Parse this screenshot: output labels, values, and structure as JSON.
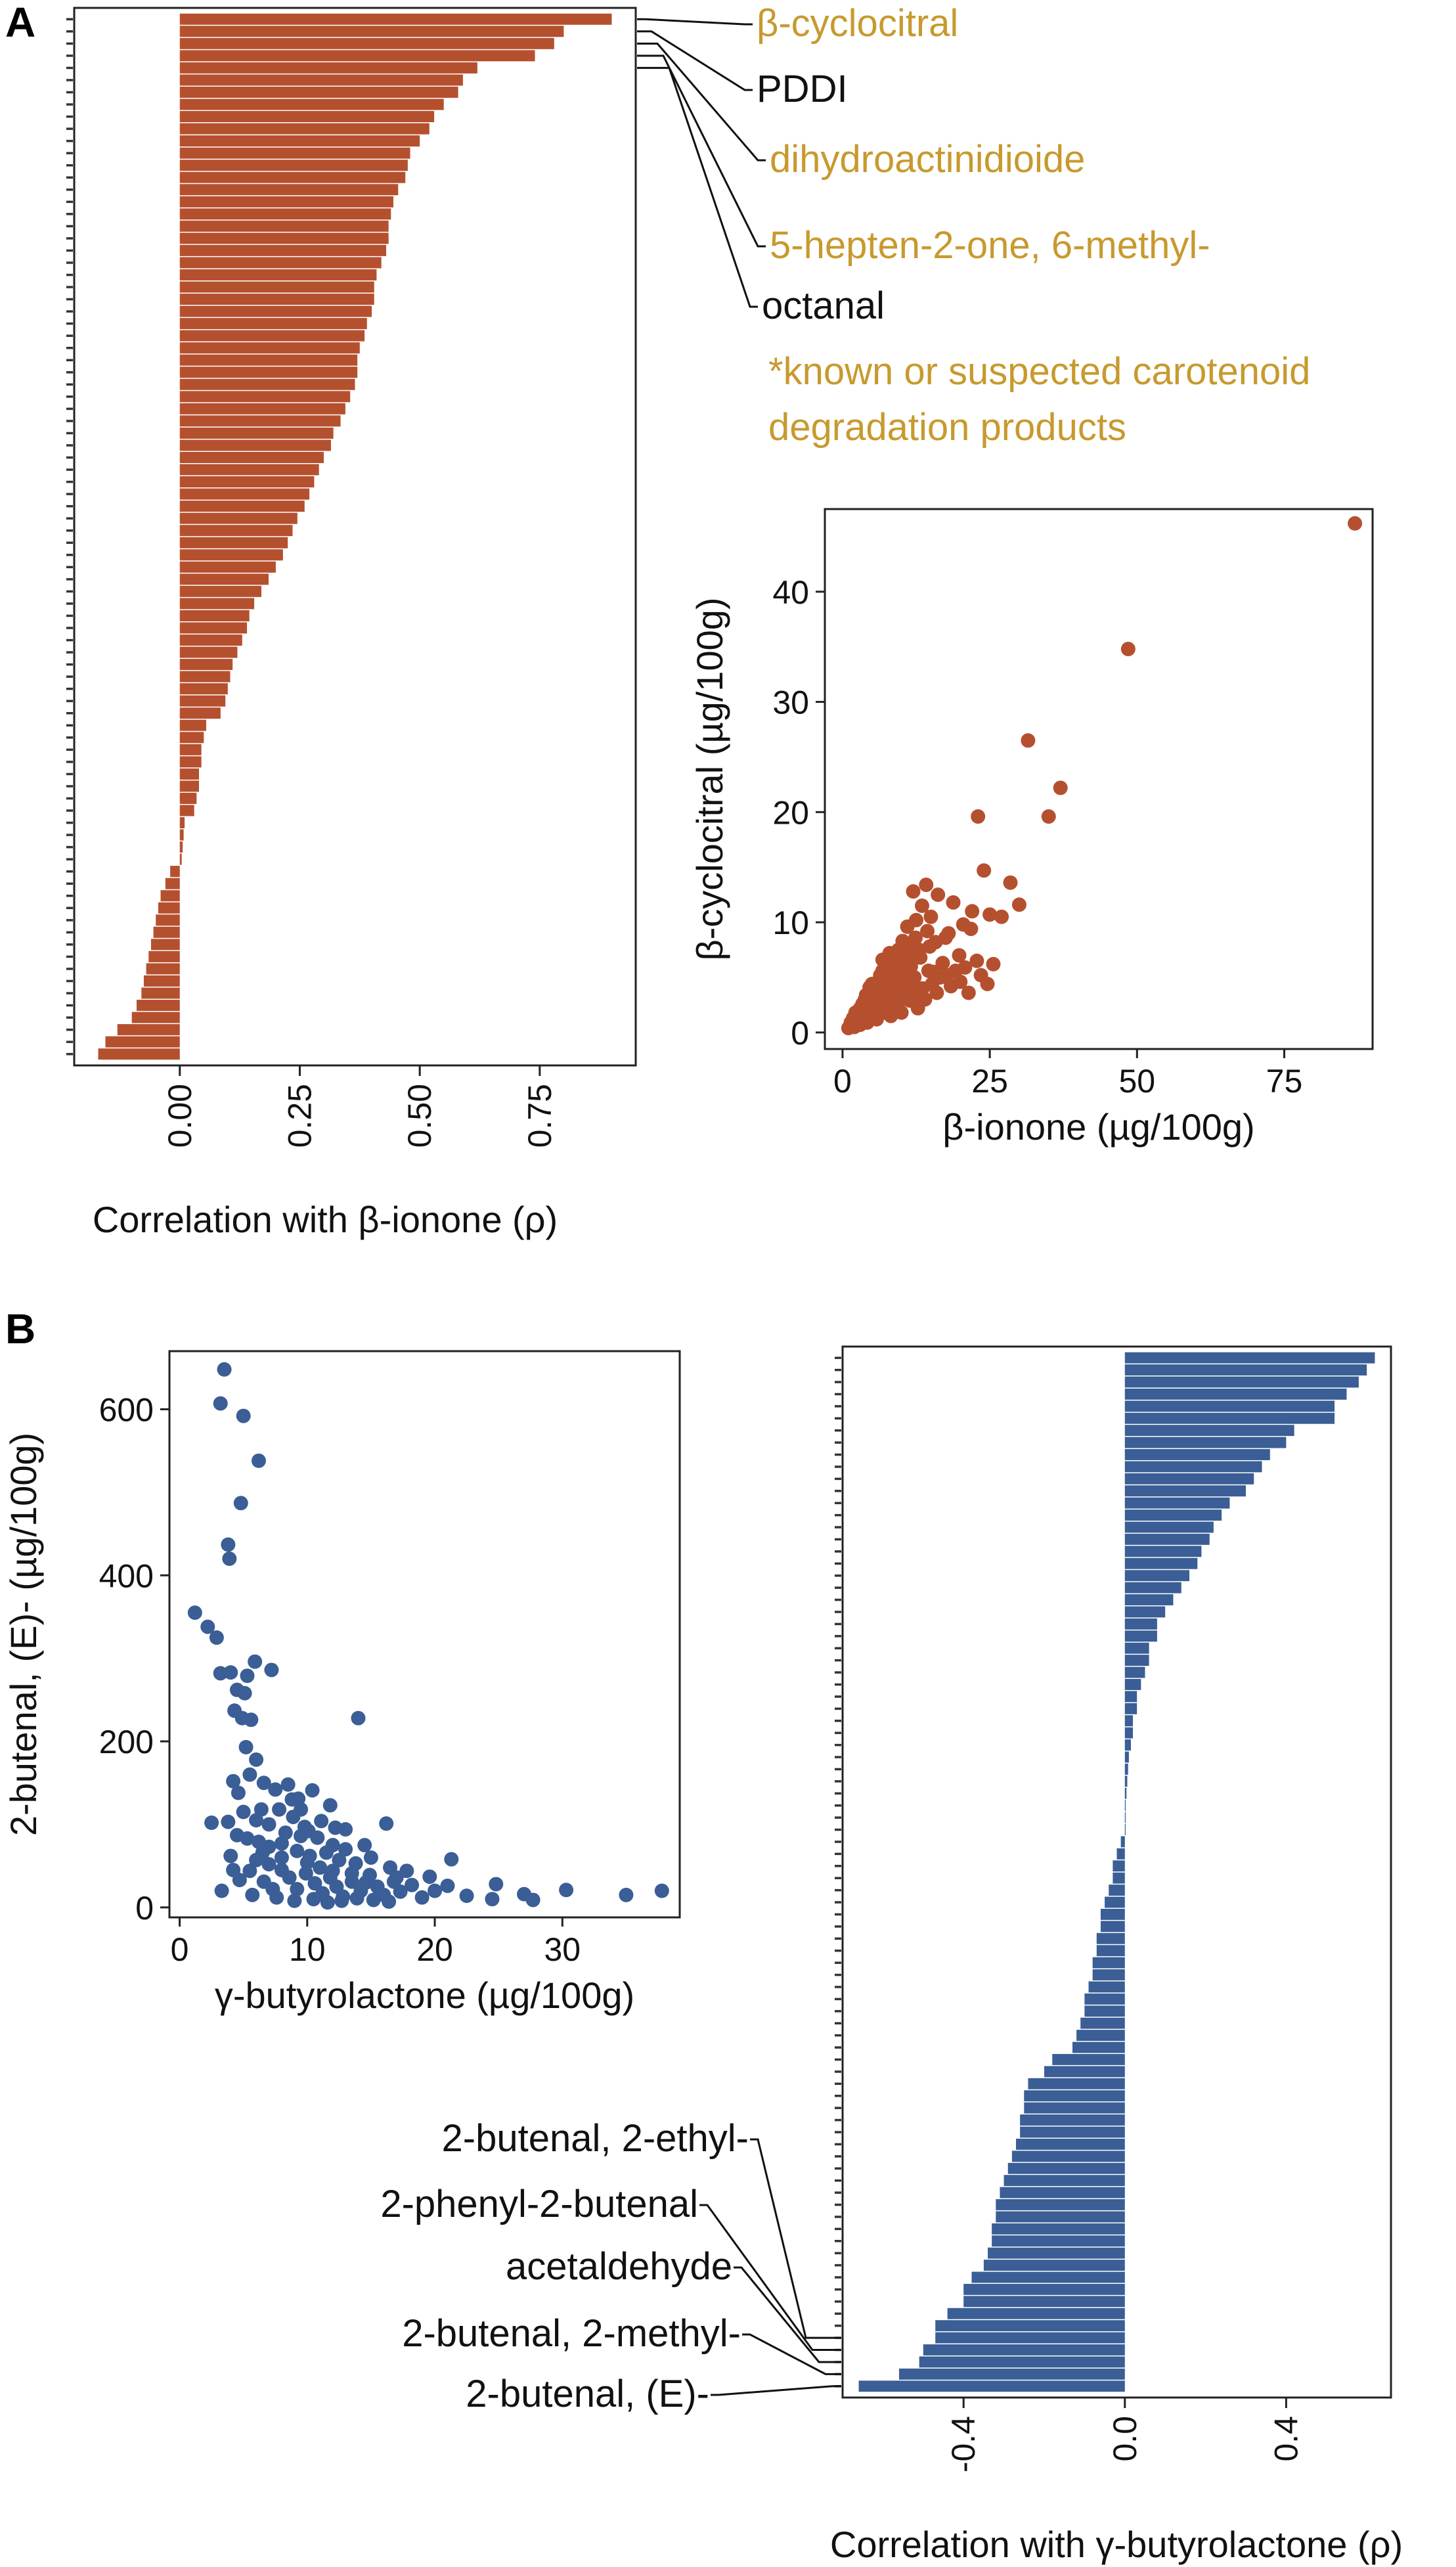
{
  "panel_labels": {
    "a": "A",
    "b": "B"
  },
  "colors": {
    "carotenoid": "#b5502f",
    "lactone": "#3a5e95",
    "note": "#c79a2e",
    "text": "#111111"
  },
  "panel_a": {
    "note_line1": "*known or suspected carotenoid",
    "note_line2": "degradation products"
  },
  "chart_data": [
    {
      "id": "a_bar",
      "type": "bar",
      "orientation": "horizontal",
      "xlabel": "Correlation with β-ionone (ρ)",
      "xticks": [
        0.0,
        0.25,
        0.5,
        0.75
      ],
      "xtick_labels": [
        "0.00",
        "0.25",
        "0.50",
        "0.75"
      ],
      "xlim": [
        -0.22,
        0.95
      ],
      "values": [
        0.9,
        0.8,
        0.78,
        0.74,
        0.62,
        0.59,
        0.58,
        0.55,
        0.53,
        0.52,
        0.5,
        0.48,
        0.475,
        0.47,
        0.455,
        0.445,
        0.44,
        0.435,
        0.435,
        0.43,
        0.42,
        0.41,
        0.405,
        0.405,
        0.4,
        0.39,
        0.385,
        0.375,
        0.37,
        0.37,
        0.365,
        0.355,
        0.345,
        0.335,
        0.32,
        0.315,
        0.3,
        0.29,
        0.28,
        0.27,
        0.26,
        0.245,
        0.235,
        0.225,
        0.215,
        0.2,
        0.185,
        0.17,
        0.155,
        0.145,
        0.14,
        0.13,
        0.12,
        0.11,
        0.105,
        0.1,
        0.095,
        0.085,
        0.055,
        0.05,
        0.045,
        0.045,
        0.04,
        0.04,
        0.035,
        0.03,
        0.01,
        0.008,
        0.006,
        0.004,
        -0.02,
        -0.03,
        -0.04,
        -0.045,
        -0.05,
        -0.055,
        -0.06,
        -0.065,
        -0.07,
        -0.075,
        -0.08,
        -0.09,
        -0.1,
        -0.13,
        -0.155,
        -0.17
      ],
      "labeled_bars": [
        {
          "name": "β-cyclocitral",
          "rank": 0,
          "color": "#c79a2e"
        },
        {
          "name": "PDDI",
          "rank": 1,
          "color": "#111111"
        },
        {
          "name": "dihydroactinidioide",
          "rank": 2,
          "color": "#c79a2e"
        },
        {
          "name": "5-hepten-2-one, 6-methyl-",
          "rank": 3,
          "color": "#c79a2e"
        },
        {
          "name": "octanal",
          "rank": 4,
          "color": "#111111"
        }
      ]
    },
    {
      "id": "a_scatter",
      "type": "scatter",
      "xlabel": "β-ionone (µg/100g)",
      "ylabel": "β-cyclocitral (µg/100g)",
      "xlim": [
        -3,
        90
      ],
      "ylim": [
        -1.5,
        47.5
      ],
      "xticks": [
        0,
        25,
        50,
        75
      ],
      "yticks": [
        0,
        10,
        20,
        30,
        40
      ],
      "points": [
        [
          87,
          46.2
        ],
        [
          48.5,
          34.8
        ],
        [
          31.5,
          26.5
        ],
        [
          37,
          22.2
        ],
        [
          35,
          19.6
        ],
        [
          23,
          19.6
        ],
        [
          24,
          14.7
        ],
        [
          28.5,
          13.6
        ],
        [
          30,
          11.6
        ],
        [
          27,
          10.5
        ],
        [
          25,
          10.7
        ],
        [
          22,
          11.0
        ],
        [
          18.8,
          11.8
        ],
        [
          20.5,
          9.8
        ],
        [
          21.8,
          9.4
        ],
        [
          16.2,
          12.5
        ],
        [
          14.2,
          13.4
        ],
        [
          12.0,
          12.8
        ],
        [
          13.5,
          11.5
        ],
        [
          11.0,
          9.6
        ],
        [
          12.5,
          10.2
        ],
        [
          15.0,
          10.5
        ],
        [
          17.5,
          8.6
        ],
        [
          19.8,
          7.0
        ],
        [
          22.8,
          6.5
        ],
        [
          25.6,
          6.2
        ],
        [
          23.5,
          5.2
        ],
        [
          20.0,
          4.6
        ],
        [
          17.0,
          6.3
        ],
        [
          15.5,
          5.5
        ],
        [
          14.8,
          7.8
        ],
        [
          13.0,
          7.5
        ],
        [
          11.8,
          8.0
        ],
        [
          10.5,
          6.6
        ],
        [
          9.8,
          5.6
        ],
        [
          9.0,
          5.0
        ],
        [
          8.5,
          6.1
        ],
        [
          8.0,
          5.5
        ],
        [
          7.5,
          4.8
        ],
        [
          7.0,
          4.2
        ],
        [
          6.8,
          5.6
        ],
        [
          6.2,
          3.6
        ],
        [
          5.6,
          3.2
        ],
        [
          5.0,
          2.8
        ],
        [
          4.5,
          2.4
        ],
        [
          4.0,
          2.1
        ],
        [
          3.6,
          1.8
        ],
        [
          3.2,
          1.6
        ],
        [
          2.8,
          1.4
        ],
        [
          2.4,
          1.1
        ],
        [
          2.0,
          0.8
        ],
        [
          1.6,
          0.6
        ],
        [
          1.2,
          0.5
        ],
        [
          1.0,
          0.4
        ],
        [
          3.8,
          3.0
        ],
        [
          4.8,
          3.6
        ],
        [
          6.0,
          4.6
        ],
        [
          7.2,
          6.3
        ],
        [
          8.8,
          6.6
        ],
        [
          9.5,
          7.5
        ],
        [
          10.2,
          8.3
        ],
        [
          5.4,
          1.8
        ],
        [
          6.6,
          2.6
        ],
        [
          7.8,
          3.1
        ],
        [
          9.2,
          3.8
        ],
        [
          10.8,
          4.4
        ],
        [
          12.2,
          5.0
        ],
        [
          13.6,
          4.0
        ],
        [
          11.4,
          2.9
        ],
        [
          8.2,
          2.4
        ],
        [
          5.8,
          1.2
        ],
        [
          4.2,
          0.9
        ],
        [
          3.0,
          0.7
        ],
        [
          2.2,
          1.8
        ],
        [
          14.0,
          3.0
        ],
        [
          16.0,
          3.6
        ],
        [
          18.4,
          4.2
        ],
        [
          10.0,
          1.8
        ],
        [
          12.8,
          2.2
        ],
        [
          6.4,
          5.2
        ],
        [
          7.6,
          5.9
        ],
        [
          4.6,
          4.1
        ],
        [
          3.4,
          2.6
        ],
        [
          8.6,
          4.2
        ],
        [
          9.6,
          3.0
        ],
        [
          11.6,
          6.0
        ],
        [
          13.2,
          6.8
        ],
        [
          12.4,
          8.6
        ],
        [
          15.8,
          8.2
        ],
        [
          18.0,
          9.0
        ],
        [
          5.2,
          2.2
        ],
        [
          6.0,
          3.0
        ],
        [
          4.4,
          1.6
        ],
        [
          7.0,
          2.0
        ],
        [
          8.2,
          1.5
        ],
        [
          9.4,
          2.2
        ],
        [
          2.6,
          0.9
        ],
        [
          3.6,
          1.2
        ],
        [
          1.8,
          1.3
        ],
        [
          5.0,
          4.4
        ],
        [
          8.0,
          7.2
        ],
        [
          10.6,
          5.4
        ],
        [
          12.0,
          4.0
        ],
        [
          14.6,
          5.6
        ],
        [
          16.6,
          5.0
        ],
        [
          19.2,
          5.6
        ],
        [
          6.8,
          6.6
        ],
        [
          7.4,
          3.6
        ],
        [
          9.0,
          4.6
        ],
        [
          11.0,
          3.6
        ],
        [
          13.0,
          3.4
        ],
        [
          15.2,
          4.4
        ],
        [
          4.0,
          3.4
        ],
        [
          5.6,
          2.6
        ],
        [
          3.0,
          2.2
        ],
        [
          2.0,
          0.5
        ],
        [
          1.4,
          0.9
        ],
        [
          4.8,
          1.4
        ],
        [
          6.4,
          1.7
        ],
        [
          17.8,
          5.2
        ],
        [
          20.8,
          5.9
        ],
        [
          21.4,
          3.6
        ],
        [
          24.6,
          4.4
        ],
        [
          9.8,
          6.3
        ],
        [
          10.4,
          7.0
        ],
        [
          11.2,
          7.2
        ],
        [
          12.6,
          7.1
        ],
        [
          14.4,
          9.2
        ],
        [
          8.4,
          5.1
        ],
        [
          7.2,
          4.7
        ],
        [
          6.6,
          4.0
        ],
        [
          5.8,
          3.8
        ]
      ]
    },
    {
      "id": "b_scatter",
      "type": "scatter",
      "xlabel": "γ-butyrolactone (µg/100g)",
      "ylabel": "2-butenal, (E)- (µg/100g)",
      "xlim": [
        -0.8,
        39.2
      ],
      "ylim": [
        -12,
        670
      ],
      "xticks": [
        0,
        10,
        20,
        30
      ],
      "yticks": [
        0,
        200,
        400,
        600
      ],
      "points": [
        [
          3.5,
          648
        ],
        [
          3.2,
          607
        ],
        [
          5.0,
          592
        ],
        [
          6.2,
          538
        ],
        [
          4.8,
          487
        ],
        [
          3.8,
          437
        ],
        [
          3.9,
          420
        ],
        [
          1.2,
          355
        ],
        [
          2.2,
          338
        ],
        [
          2.9,
          325
        ],
        [
          4.0,
          283
        ],
        [
          5.3,
          279
        ],
        [
          5.9,
          296
        ],
        [
          7.2,
          286
        ],
        [
          3.2,
          282
        ],
        [
          4.5,
          262
        ],
        [
          5.1,
          258
        ],
        [
          4.3,
          237
        ],
        [
          4.9,
          228
        ],
        [
          5.6,
          226
        ],
        [
          14.0,
          228
        ],
        [
          5.2,
          193
        ],
        [
          6.0,
          178
        ],
        [
          5.5,
          160
        ],
        [
          6.6,
          150
        ],
        [
          7.5,
          142
        ],
        [
          8.5,
          148
        ],
        [
          9.3,
          131
        ],
        [
          10.4,
          141
        ],
        [
          11.8,
          123
        ],
        [
          4.2,
          152
        ],
        [
          4.6,
          138
        ],
        [
          6.4,
          118
        ],
        [
          7.8,
          118
        ],
        [
          8.9,
          109
        ],
        [
          9.8,
          97
        ],
        [
          11.1,
          104
        ],
        [
          12.2,
          96
        ],
        [
          13.0,
          94
        ],
        [
          16.2,
          101
        ],
        [
          2.5,
          102
        ],
        [
          3.8,
          103
        ],
        [
          4.5,
          87
        ],
        [
          5.3,
          83
        ],
        [
          6.2,
          79
        ],
        [
          7.0,
          73
        ],
        [
          8.0,
          77
        ],
        [
          9.2,
          68
        ],
        [
          10.2,
          62
        ],
        [
          11.5,
          66
        ],
        [
          12.5,
          57
        ],
        [
          13.8,
          53
        ],
        [
          15.0,
          60
        ],
        [
          16.5,
          48
        ],
        [
          17.8,
          44
        ],
        [
          19.6,
          37
        ],
        [
          21.3,
          58
        ],
        [
          24.8,
          28
        ],
        [
          27.0,
          16
        ],
        [
          30.3,
          21
        ],
        [
          35.0,
          15
        ],
        [
          37.8,
          20
        ],
        [
          3.3,
          20
        ],
        [
          4.0,
          62
        ],
        [
          4.7,
          33
        ],
        [
          5.5,
          44
        ],
        [
          6.0,
          57
        ],
        [
          6.6,
          31
        ],
        [
          7.3,
          22
        ],
        [
          8.0,
          45
        ],
        [
          8.6,
          36
        ],
        [
          9.2,
          22
        ],
        [
          9.9,
          41
        ],
        [
          10.6,
          29
        ],
        [
          11.2,
          17
        ],
        [
          11.8,
          36
        ],
        [
          12.3,
          25
        ],
        [
          12.8,
          13
        ],
        [
          13.5,
          31
        ],
        [
          14.2,
          20
        ],
        [
          14.9,
          39
        ],
        [
          15.5,
          25
        ],
        [
          16.0,
          15
        ],
        [
          16.8,
          31
        ],
        [
          17.3,
          19
        ],
        [
          18.2,
          27
        ],
        [
          19.0,
          12
        ],
        [
          20.0,
          20
        ],
        [
          21.0,
          26
        ],
        [
          22.5,
          14
        ],
        [
          24.5,
          10
        ],
        [
          27.7,
          9
        ],
        [
          5.0,
          115
        ],
        [
          6.0,
          105
        ],
        [
          7.0,
          100
        ],
        [
          8.3,
          90
        ],
        [
          9.5,
          86
        ],
        [
          10.8,
          84
        ],
        [
          12.0,
          75
        ],
        [
          13.0,
          70
        ],
        [
          14.5,
          75
        ],
        [
          4.2,
          45
        ],
        [
          5.7,
          15
        ],
        [
          7.6,
          12
        ],
        [
          9.0,
          8
        ],
        [
          10.5,
          10
        ],
        [
          11.6,
          6
        ],
        [
          12.7,
          8
        ],
        [
          13.9,
          11
        ],
        [
          15.2,
          9
        ],
        [
          16.4,
          7
        ],
        [
          8.0,
          60
        ],
        [
          10.0,
          54
        ],
        [
          11.0,
          48
        ],
        [
          12.0,
          44
        ],
        [
          7.0,
          52
        ],
        [
          6.5,
          66
        ],
        [
          9.5,
          118
        ],
        [
          10.1,
          92
        ],
        [
          8.8,
          130
        ],
        [
          13.5,
          41
        ],
        [
          14.6,
          30
        ],
        [
          17.0,
          36
        ]
      ]
    },
    {
      "id": "b_bar",
      "type": "bar",
      "orientation": "horizontal",
      "xlabel": "Correlation with γ-butyrolactone (ρ)",
      "xticks": [
        -0.4,
        0.0,
        0.4
      ],
      "xtick_labels": [
        "-0.4",
        "0.0",
        "0.4"
      ],
      "xlim": [
        -0.7,
        0.66
      ],
      "values": [
        0.62,
        0.6,
        0.58,
        0.55,
        0.52,
        0.52,
        0.42,
        0.4,
        0.36,
        0.34,
        0.32,
        0.3,
        0.26,
        0.24,
        0.22,
        0.21,
        0.19,
        0.18,
        0.16,
        0.14,
        0.12,
        0.1,
        0.08,
        0.08,
        0.06,
        0.06,
        0.05,
        0.04,
        0.03,
        0.03,
        0.02,
        0.02,
        0.015,
        0.01,
        0.008,
        0.006,
        0.004,
        0.002,
        0.001,
        0.0,
        -0.01,
        -0.02,
        -0.03,
        -0.03,
        -0.04,
        -0.05,
        -0.06,
        -0.06,
        -0.07,
        -0.07,
        -0.08,
        -0.08,
        -0.09,
        -0.1,
        -0.1,
        -0.11,
        -0.12,
        -0.13,
        -0.18,
        -0.2,
        -0.24,
        -0.25,
        -0.25,
        -0.26,
        -0.26,
        -0.27,
        -0.28,
        -0.29,
        -0.3,
        -0.31,
        -0.32,
        -0.32,
        -0.33,
        -0.33,
        -0.34,
        -0.35,
        -0.38,
        -0.4,
        -0.4,
        -0.44,
        -0.47,
        -0.47,
        -0.5,
        -0.51,
        -0.56,
        -0.66
      ],
      "labeled_bars": [
        {
          "name": "2-butenal, 2-ethyl-",
          "rank": 81,
          "color": "#111111"
        },
        {
          "name": "2-phenyl-2-butenal",
          "rank": 82,
          "color": "#111111"
        },
        {
          "name": "acetaldehyde",
          "rank": 83,
          "color": "#111111"
        },
        {
          "name": "2-butenal, 2-methyl-",
          "rank": 84,
          "color": "#111111"
        },
        {
          "name": "2-butenal, (E)-",
          "rank": 85,
          "color": "#111111"
        }
      ]
    }
  ]
}
